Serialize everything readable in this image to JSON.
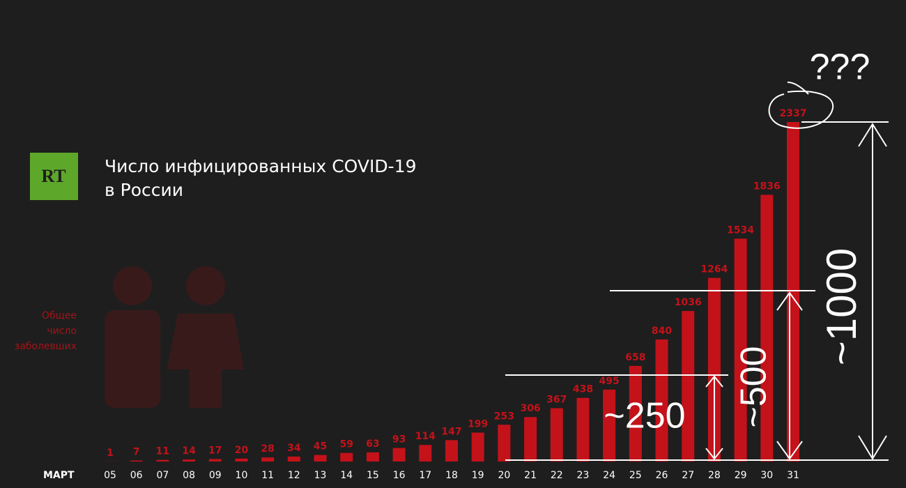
{
  "chart_data": {
    "type": "bar",
    "logo": "RT",
    "title_lines": [
      "Число инфицированных COVID-19",
      "в России"
    ],
    "side_label_lines": [
      "Общее",
      "число",
      "заболевших"
    ],
    "x_label": "МАРТ",
    "categories": [
      "05",
      "06",
      "07",
      "08",
      "09",
      "10",
      "11",
      "12",
      "13",
      "14",
      "15",
      "16",
      "17",
      "18",
      "19",
      "20",
      "21",
      "22",
      "23",
      "24",
      "25",
      "26",
      "27",
      "28",
      "29",
      "30",
      "31"
    ],
    "values": [
      1,
      7,
      11,
      14,
      17,
      20,
      28,
      34,
      45,
      59,
      63,
      93,
      114,
      147,
      199,
      253,
      306,
      367,
      438,
      495,
      658,
      840,
      1036,
      1264,
      1534,
      1836,
      2337
    ],
    "color": "#c4121a",
    "annotations": [
      "~250",
      "~500",
      "~1000",
      "???"
    ]
  }
}
